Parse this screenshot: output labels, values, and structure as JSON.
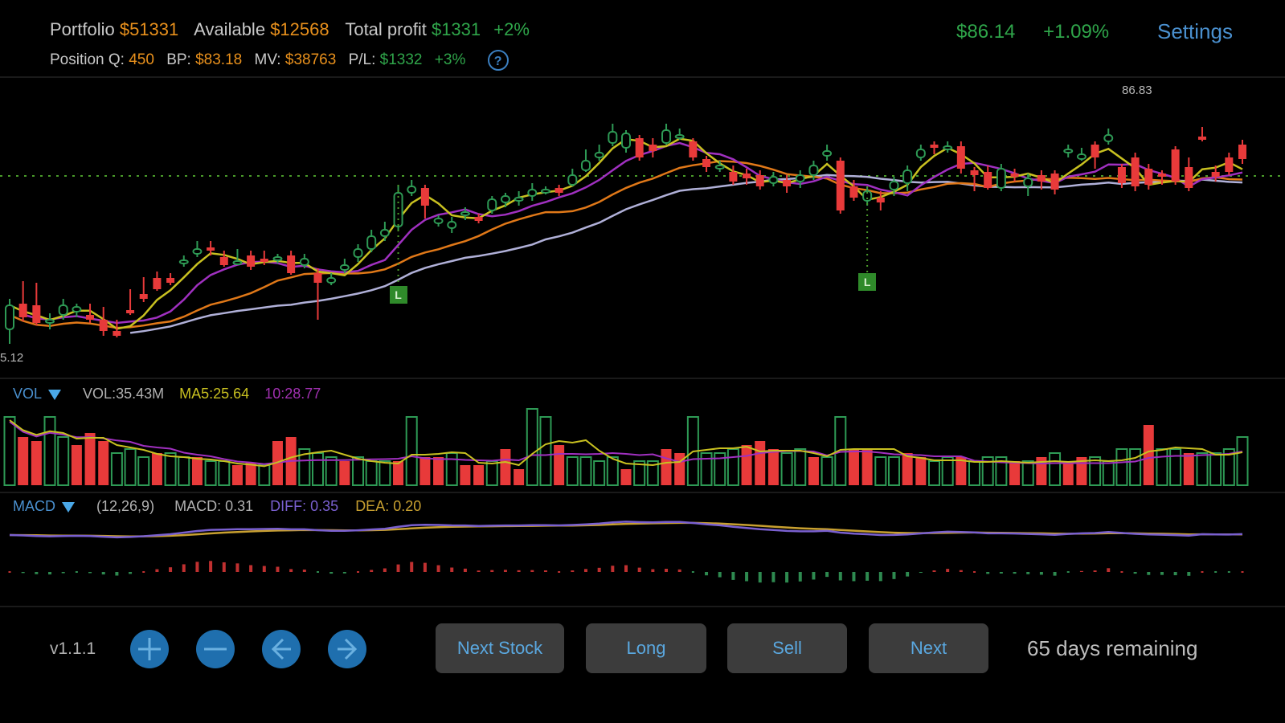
{
  "header": {
    "portfolio_label": "Portfolio",
    "portfolio_value": "$51331",
    "available_label": "Available",
    "available_value": "$12568",
    "total_profit_label": "Total profit",
    "total_profit_value": "$1331",
    "total_profit_pct": "+2%",
    "position_q_label": "Position Q:",
    "position_q_value": "450",
    "bp_label": "BP:",
    "bp_value": "$83.18",
    "mv_label": "MV:",
    "mv_value": "$38763",
    "pl_label": "P/L:",
    "pl_value": "$1332",
    "pl_pct": "+3%",
    "help_icon": "?",
    "current_price": "$86.14",
    "price_change": "+1.09%",
    "settings_label": "Settings"
  },
  "main_chart": {
    "high_label": "86.83",
    "low_label": "5.12",
    "markers": [
      {
        "label": "L",
        "index": 29
      },
      {
        "label": "L",
        "index": 64
      }
    ],
    "colors": {
      "up": "#2e9a55",
      "down": "#e83a3a",
      "ma5": "#c8c020",
      "ma10": "#a030c0",
      "ma20": "#e07818",
      "ma60": "#b0b0d8",
      "dotted": "#4a9a2a"
    }
  },
  "volume_panel": {
    "title": "VOL",
    "vol_label": "VOL:35.43M",
    "ma5_label": "MA5:25.64",
    "ma10_label": "10:28.77"
  },
  "macd_panel": {
    "title": "MACD",
    "params": "(12,26,9)",
    "macd_label": "MACD: 0.31",
    "diff_label": "DIFF: 0.35",
    "dea_label": "DEA: 0.20"
  },
  "footer": {
    "version": "v1.1.1",
    "icons": [
      "zoom-in-icon",
      "zoom-out-icon",
      "arrow-left-icon",
      "arrow-right-icon"
    ],
    "buttons": {
      "next_stock": "Next Stock",
      "long": "Long",
      "sell": "Sell",
      "next": "Next"
    },
    "days_remaining": "65 days remaining"
  },
  "chart_data": {
    "type": "candlestick",
    "title": "",
    "candles": [
      [
        0,
        410,
        380,
        428,
        372
      ],
      [
        1,
        378,
        395,
        350,
        400
      ],
      [
        2,
        380,
        402,
        352,
        405
      ],
      [
        3,
        400,
        398,
        390,
        410
      ],
      [
        4,
        392,
        380,
        372,
        398
      ],
      [
        5,
        388,
        382,
        378,
        395
      ],
      [
        6,
        392,
        398,
        378,
        402
      ],
      [
        7,
        398,
        412,
        382,
        418
      ],
      [
        8,
        412,
        418,
        398,
        420
      ],
      [
        9,
        386,
        388,
        360,
        392
      ],
      [
        10,
        366,
        372,
        345,
        376
      ],
      [
        11,
        346,
        360,
        338,
        362
      ],
      [
        12,
        346,
        352,
        340,
        355
      ],
      [
        13,
        328,
        324,
        318,
        332
      ],
      [
        14,
        316,
        310,
        300,
        320
      ],
      [
        15,
        308,
        312,
        300,
        318
      ],
      [
        16,
        320,
        330,
        312,
        332
      ],
      [
        17,
        326,
        325,
        310,
        330
      ],
      [
        18,
        318,
        332,
        312,
        336
      ],
      [
        19,
        322,
        322,
        312,
        330
      ],
      [
        20,
        324,
        320,
        316,
        328
      ],
      [
        21,
        318,
        340,
        312,
        342
      ],
      [
        22,
        330,
        322,
        316,
        334
      ],
      [
        23,
        340,
        352,
        334,
        398
      ],
      [
        24,
        352,
        346,
        340,
        355
      ],
      [
        25,
        336,
        330,
        322,
        340
      ],
      [
        26,
        320,
        310,
        304,
        326
      ],
      [
        27,
        310,
        294,
        286,
        314
      ],
      [
        28,
        294,
        286,
        276,
        300
      ],
      [
        29,
        282,
        240,
        230,
        286
      ],
      [
        30,
        240,
        232,
        224,
        244
      ],
      [
        31,
        234,
        256,
        230,
        272
      ],
      [
        32,
        278,
        272,
        268,
        282
      ],
      [
        33,
        284,
        276,
        270,
        290
      ],
      [
        34,
        268,
        264,
        258,
        274
      ],
      [
        35,
        270,
        275,
        266,
        278
      ],
      [
        36,
        262,
        248,
        244,
        266
      ],
      [
        37,
        252,
        244,
        240,
        258
      ],
      [
        38,
        250,
        246,
        238,
        256
      ],
      [
        39,
        244,
        236,
        228,
        250
      ],
      [
        40,
        238,
        236,
        232,
        242
      ],
      [
        41,
        234,
        240,
        230,
        244
      ],
      [
        42,
        230,
        218,
        210,
        232
      ],
      [
        43,
        212,
        200,
        186,
        214
      ],
      [
        44,
        196,
        190,
        180,
        200
      ],
      [
        45,
        178,
        164,
        154,
        182
      ],
      [
        46,
        184,
        166,
        162,
        190
      ],
      [
        47,
        172,
        196,
        168,
        200
      ],
      [
        48,
        180,
        188,
        172,
        196
      ],
      [
        49,
        178,
        162,
        154,
        180
      ],
      [
        50,
        170,
        168,
        160,
        174
      ],
      [
        51,
        176,
        196,
        172,
        200
      ],
      [
        52,
        198,
        208,
        194,
        214
      ],
      [
        53,
        210,
        206,
        200,
        214
      ],
      [
        54,
        214,
        226,
        206,
        230
      ],
      [
        55,
        216,
        222,
        210,
        230
      ],
      [
        56,
        218,
        232,
        212,
        236
      ],
      [
        57,
        228,
        220,
        214,
        232
      ],
      [
        58,
        224,
        232,
        218,
        240
      ],
      [
        59,
        226,
        218,
        212,
        234
      ],
      [
        60,
        218,
        206,
        200,
        224
      ],
      [
        61,
        194,
        188,
        180,
        200
      ],
      [
        62,
        200,
        262,
        196,
        266
      ],
      [
        63,
        232,
        246,
        224,
        250
      ],
      [
        64,
        250,
        238,
        232,
        256
      ],
      [
        65,
        246,
        252,
        238,
        262
      ],
      [
        66,
        236,
        226,
        220,
        244
      ],
      [
        67,
        228,
        212,
        206,
        238
      ],
      [
        68,
        196,
        186,
        180,
        200
      ],
      [
        69,
        180,
        184,
        176,
        192
      ],
      [
        70,
        186,
        182,
        176,
        190
      ],
      [
        71,
        182,
        210,
        176,
        216
      ],
      [
        72,
        212,
        218,
        208,
        238
      ],
      [
        73,
        214,
        234,
        206,
        236
      ],
      [
        74,
        234,
        210,
        204,
        238
      ],
      [
        75,
        216,
        216,
        210,
        226
      ],
      [
        76,
        232,
        222,
        216,
        244
      ],
      [
        77,
        218,
        226,
        212,
        236
      ],
      [
        78,
        216,
        236,
        212,
        242
      ],
      [
        79,
        190,
        186,
        180,
        196
      ],
      [
        80,
        198,
        192,
        184,
        200
      ],
      [
        81,
        180,
        196,
        176,
        210
      ],
      [
        82,
        176,
        168,
        160,
        180
      ],
      [
        83,
        208,
        228,
        204,
        234
      ],
      [
        84,
        196,
        232,
        190,
        238
      ],
      [
        85,
        210,
        230,
        204,
        236
      ],
      [
        86,
        216,
        220,
        212,
        230
      ],
      [
        87,
        186,
        226,
        182,
        230
      ],
      [
        88,
        208,
        234,
        196,
        238
      ],
      [
        89,
        170,
        172,
        158,
        176
      ],
      [
        90,
        214,
        220,
        206,
        226
      ],
      [
        91,
        196,
        214,
        190,
        218
      ],
      [
        92,
        180,
        198,
        174,
        204
      ]
    ],
    "ma_lines": [
      "MA5",
      "MA10",
      "MA20",
      "MA60"
    ],
    "annotations": [
      "86.83 (high)",
      "5.12 (low)",
      "L marker at candle ~29",
      "L marker at candle ~64"
    ],
    "volume": {
      "series_labels": [
        "VOL:35.43M",
        "MA5:25.64",
        "10:28.77"
      ],
      "bars": [
        [
          0,
          "up",
          85
        ],
        [
          1,
          "down",
          60
        ],
        [
          2,
          "down",
          55
        ],
        [
          3,
          "up",
          85
        ],
        [
          4,
          "up",
          60
        ],
        [
          5,
          "down",
          50
        ],
        [
          6,
          "down",
          65
        ],
        [
          7,
          "down",
          55
        ],
        [
          8,
          "up",
          40
        ],
        [
          9,
          "up",
          45
        ],
        [
          10,
          "up",
          35
        ],
        [
          11,
          "down",
          40
        ],
        [
          12,
          "up",
          40
        ],
        [
          13,
          "up",
          35
        ],
        [
          14,
          "down",
          35
        ],
        [
          15,
          "up",
          30
        ],
        [
          16,
          "up",
          30
        ],
        [
          17,
          "down",
          25
        ],
        [
          18,
          "down",
          28
        ],
        [
          19,
          "up",
          25
        ],
        [
          20,
          "down",
          55
        ],
        [
          21,
          "down",
          60
        ],
        [
          22,
          "up",
          45
        ],
        [
          23,
          "up",
          40
        ],
        [
          24,
          "up",
          35
        ],
        [
          25,
          "down",
          30
        ],
        [
          26,
          "up",
          35
        ],
        [
          27,
          "up",
          30
        ],
        [
          28,
          "up",
          30
        ],
        [
          29,
          "down",
          30
        ],
        [
          30,
          "up",
          85
        ],
        [
          31,
          "down",
          35
        ],
        [
          32,
          "down",
          35
        ],
        [
          33,
          "up",
          40
        ],
        [
          34,
          "down",
          25
        ],
        [
          35,
          "down",
          25
        ],
        [
          36,
          "up",
          30
        ],
        [
          37,
          "down",
          45
        ],
        [
          38,
          "down",
          20
        ],
        [
          39,
          "up",
          95
        ],
        [
          40,
          "up",
          85
        ],
        [
          41,
          "down",
          50
        ],
        [
          42,
          "up",
          35
        ],
        [
          43,
          "up",
          35
        ],
        [
          44,
          "up",
          30
        ],
        [
          45,
          "up",
          35
        ],
        [
          46,
          "down",
          20
        ],
        [
          47,
          "up",
          30
        ],
        [
          48,
          "up",
          30
        ],
        [
          49,
          "down",
          45
        ],
        [
          50,
          "down",
          40
        ],
        [
          51,
          "up",
          85
        ],
        [
          52,
          "up",
          40
        ],
        [
          53,
          "up",
          40
        ],
        [
          54,
          "up",
          45
        ],
        [
          55,
          "down",
          50
        ],
        [
          56,
          "down",
          55
        ],
        [
          57,
          "down",
          45
        ],
        [
          58,
          "up",
          40
        ],
        [
          59,
          "up",
          45
        ],
        [
          60,
          "down",
          35
        ],
        [
          61,
          "up",
          35
        ],
        [
          62,
          "up",
          85
        ],
        [
          63,
          "down",
          45
        ],
        [
          64,
          "down",
          45
        ],
        [
          65,
          "up",
          35
        ],
        [
          66,
          "up",
          35
        ],
        [
          67,
          "down",
          40
        ],
        [
          68,
          "down",
          35
        ],
        [
          69,
          "up",
          30
        ],
        [
          70,
          "up",
          35
        ],
        [
          71,
          "down",
          35
        ],
        [
          72,
          "up",
          30
        ],
        [
          73,
          "up",
          35
        ],
        [
          74,
          "up",
          35
        ],
        [
          75,
          "down",
          30
        ],
        [
          76,
          "up",
          30
        ],
        [
          77,
          "down",
          35
        ],
        [
          78,
          "up",
          40
        ],
        [
          79,
          "down",
          30
        ],
        [
          80,
          "down",
          35
        ],
        [
          81,
          "up",
          35
        ],
        [
          82,
          "up",
          30
        ],
        [
          83,
          "up",
          45
        ],
        [
          84,
          "up",
          45
        ],
        [
          85,
          "down",
          75
        ],
        [
          86,
          "up",
          45
        ],
        [
          87,
          "up",
          45
        ],
        [
          88,
          "down",
          40
        ],
        [
          89,
          "up",
          40
        ],
        [
          90,
          "up",
          40
        ],
        [
          91,
          "up",
          45
        ],
        [
          92,
          "up",
          60
        ]
      ]
    },
    "macd": {
      "params": "(12,26,9)",
      "macd": 0.31,
      "diff": 0.35,
      "dea": 0.2
    }
  }
}
